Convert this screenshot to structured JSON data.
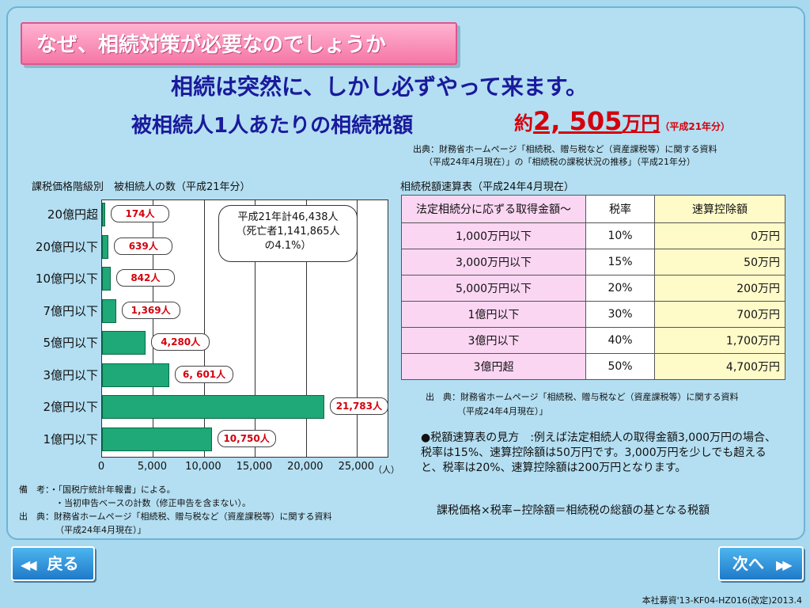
{
  "banner_title": "なぜ、相続対策が必要なのでしょうか",
  "headline1": "相続は突然に、しかし必ずやって来ます。",
  "headline2": "被相続人1人あたりの相続税額",
  "headline2_amount_prefix": "約",
  "headline2_amount": "2, 505",
  "headline2_amount_unit": "万円",
  "headline2_amount_era": "（平成21年分）",
  "source_top_line1": "出典：財務省ホームページ「相続税、贈与税など（資産課税等）に関する資料",
  "source_top_line2": "（平成24年4月現在）」の「相続税の課税状況の推移」（平成21年分）",
  "chart_label": "課税価格階級別　被相続人の数（平成21年分）",
  "chart_data": {
    "type": "bar",
    "orientation": "horizontal",
    "categories": [
      "20億円超",
      "20億円以下",
      "10億円以下",
      "7億円以下",
      "5億円以下",
      "3億円以下",
      "2億円以下",
      "1億円以下"
    ],
    "values": [
      174,
      639,
      842,
      1369,
      4280,
      6601,
      21783,
      10750
    ],
    "value_labels": [
      "174人",
      "639人",
      "842人",
      "1,369人",
      "4,280人",
      "6, 601人",
      "21,783人",
      "10,750人"
    ],
    "xticks": [
      "0",
      "5,000",
      "10,000",
      "15,000",
      "20,000",
      "25,000"
    ],
    "xunit": "（人）",
    "xlim": [
      0,
      28000
    ],
    "bar_color": "#1fa878",
    "label_color": "#d4000c"
  },
  "callout_line1": "平成21年計46,438人",
  "callout_line2": "（死亡者1,141,865人",
  "callout_line3": "の4.1%）",
  "notes_line1": "備　考：・「国税庁統計年報書」による。",
  "notes_line2": "・当初申告ベースの計数（修正申告を含まない）。",
  "notes_line3": "出　典：財務省ホームページ「相続税、贈与税など（資産課税等）に関する資料",
  "notes_line4": "（平成24年4月現在）」",
  "table_label": "相続税額速算表（平成24年4月現在）",
  "table_headers": [
    "法定相続分に応ずる取得金額～",
    "税率",
    "速算控除額"
  ],
  "table_rows": [
    [
      "1,000万円以下",
      "10%",
      "0万円"
    ],
    [
      "3,000万円以下",
      "15%",
      "50万円"
    ],
    [
      "5,000万円以下",
      "20%",
      "200万円"
    ],
    [
      "1億円以下",
      "30%",
      "700万円"
    ],
    [
      "3億円以下",
      "40%",
      "1,700万円"
    ],
    [
      "3億円超",
      "50%",
      "4,700万円"
    ]
  ],
  "source_table_line1": "出　典：財務省ホームページ「相続税、贈与税など（資産課税等）に関する資料",
  "source_table_line2": "（平成24年4月現在）」",
  "explanation": "●税額速算表の見方　:例えば法定相続人の取得金額3,000万円の場合、税率は15%、速算控除額は50万円です。3,000万円を少しでも超えると、税率は20%、速算控除額は200万円となります。",
  "formula": "課税価格×税率−控除額＝相続税の総額の基となる税額",
  "nav_back": "戻る",
  "nav_next": "次へ",
  "footer": "本社募資'13-KF04-HZ016(改定)2013.4"
}
